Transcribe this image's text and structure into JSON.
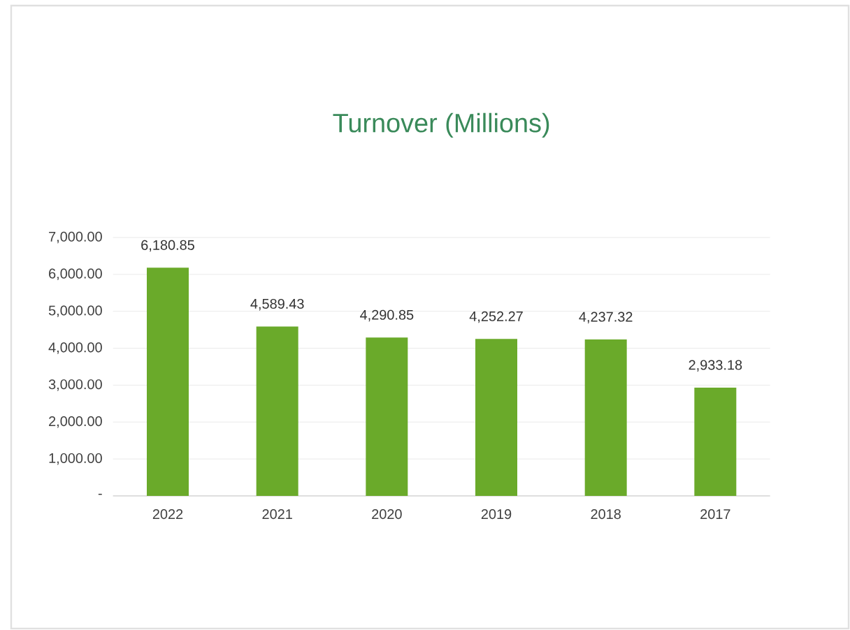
{
  "chart_data": {
    "type": "bar",
    "title": "Turnover (Millions)",
    "categories": [
      "2022",
      "2021",
      "2020",
      "2019",
      "2018",
      "2017"
    ],
    "values": [
      6180.85,
      4589.43,
      4290.85,
      4252.27,
      4237.32,
      2933.18
    ],
    "value_labels": [
      "6,180.85",
      "4,589.43",
      "4,290.85",
      "4,252.27",
      "4,237.32",
      "2,933.18"
    ],
    "color": "#6aaa2a",
    "ylim": [
      0,
      7000
    ],
    "yticks": [
      {
        "value": 0,
        "label": "-"
      },
      {
        "value": 1000,
        "label": "1,000.00"
      },
      {
        "value": 2000,
        "label": "2,000.00"
      },
      {
        "value": 3000,
        "label": "3,000.00"
      },
      {
        "value": 4000,
        "label": "4,000.00"
      },
      {
        "value": 5000,
        "label": "5,000.00"
      },
      {
        "value": 6000,
        "label": "6,000.00"
      },
      {
        "value": 7000,
        "label": "7,000.00"
      }
    ],
    "grid": "y"
  }
}
